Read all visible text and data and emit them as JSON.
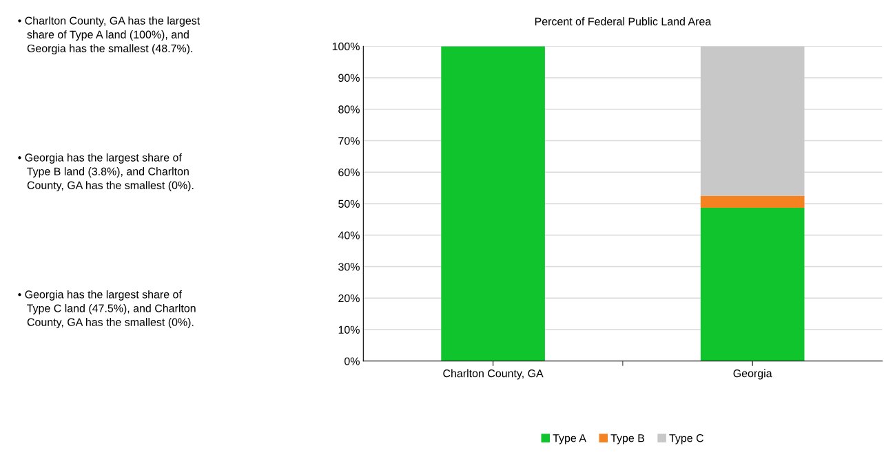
{
  "chart_data": {
    "type": "bar",
    "title": "Percent of Federal Public Land Area",
    "stacked": true,
    "categories": [
      "Charlton County, GA",
      "Georgia"
    ],
    "series": [
      {
        "name": "Type A",
        "color": "#10c42e",
        "values": [
          100,
          48.7
        ]
      },
      {
        "name": "Type B",
        "color": "#f58220",
        "values": [
          0,
          3.8
        ]
      },
      {
        "name": "Type C",
        "color": "#c8c8c8",
        "values": [
          0,
          47.5
        ]
      }
    ],
    "ylim": [
      0,
      100
    ],
    "yticks": [
      {
        "value": 0,
        "label": "0%"
      },
      {
        "value": 10,
        "label": "10%"
      },
      {
        "value": 20,
        "label": "20%"
      },
      {
        "value": 30,
        "label": "30%"
      },
      {
        "value": 40,
        "label": "40%"
      },
      {
        "value": 50,
        "label": "50%"
      },
      {
        "value": 60,
        "label": "60%"
      },
      {
        "value": 70,
        "label": "70%"
      },
      {
        "value": 80,
        "label": "80%"
      },
      {
        "value": 90,
        "label": "90%"
      },
      {
        "value": 100,
        "label": "100%"
      }
    ],
    "grid": "y",
    "legend": "bottom",
    "annotations": [
      "• Charlton County, GA has the largest\n   share of Type A land (100%), and\n   Georgia has the smallest (48.7%).",
      "• Georgia has the largest share of\n   Type B land (3.8%), and Charlton\n   County, GA has the smallest (0%).",
      "• Georgia has the largest share of\n   Type C land (47.5%), and Charlton\n   County, GA has the smallest (0%)."
    ]
  }
}
